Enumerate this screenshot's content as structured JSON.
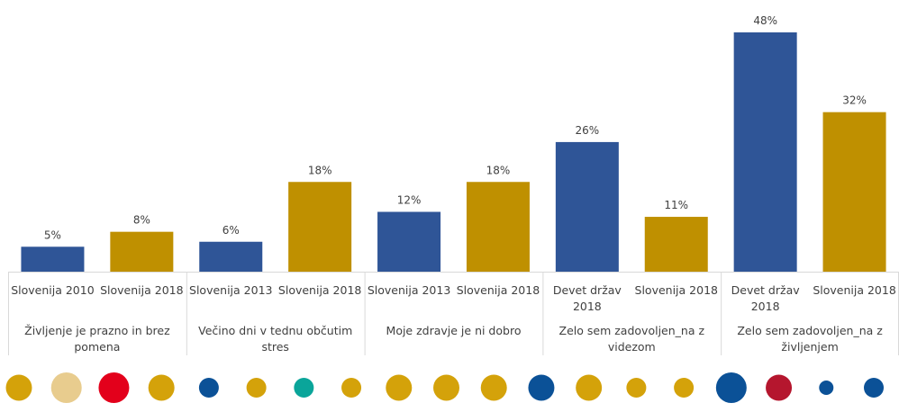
{
  "chart_data": {
    "type": "bar",
    "title": "",
    "xlabel": "",
    "ylabel": "",
    "ylim": [
      0,
      50
    ],
    "grid": false,
    "legend": "none",
    "value_format": "percent",
    "groups": [
      {
        "label": "Življenje je prazno in brez pomena",
        "bars": [
          {
            "category": "Slovenija 2010",
            "value": 5,
            "label": "5%",
            "series": "comparison"
          },
          {
            "category": "Slovenija 2018",
            "value": 8,
            "label": "8%",
            "series": "slovenia2018"
          }
        ]
      },
      {
        "label": "Večino dni v tednu občutim stres",
        "bars": [
          {
            "category": "Slovenija 2013",
            "value": 6,
            "label": "6%",
            "series": "comparison"
          },
          {
            "category": "Slovenija 2018",
            "value": 18,
            "label": "18%",
            "series": "slovenia2018"
          }
        ]
      },
      {
        "label": "Moje zdravje je ni dobro",
        "bars": [
          {
            "category": "Slovenija 2013",
            "value": 12,
            "label": "12%",
            "series": "comparison"
          },
          {
            "category": "Slovenija 2018",
            "value": 18,
            "label": "18%",
            "series": "slovenia2018"
          }
        ]
      },
      {
        "label": "Zelo sem zadovoljen_na z videzom",
        "bars": [
          {
            "category": "Devet držav 2018",
            "value": 26,
            "label": "26%",
            "series": "comparison"
          },
          {
            "category": "Slovenija 2018",
            "value": 11,
            "label": "11%",
            "series": "slovenia2018"
          }
        ]
      },
      {
        "label": "Zelo sem zadovoljen_na z življenjem",
        "bars": [
          {
            "category": "Devet držav 2018",
            "value": 48,
            "label": "48%",
            "series": "comparison"
          },
          {
            "category": "Slovenija 2018",
            "value": 32,
            "label": "32%",
            "series": "slovenia2018"
          }
        ]
      }
    ],
    "series_colors": {
      "comparison": "#2f5597",
      "slovenia2018": "#bf9000"
    }
  },
  "decor": {
    "dots": [
      {
        "color": "#d4a20a",
        "size": "m"
      },
      {
        "color": "#e8cc8e",
        "size": "l"
      },
      {
        "color": "#e3001b",
        "size": "l"
      },
      {
        "color": "#d4a20a",
        "size": "m"
      },
      {
        "color": "#0b5197",
        "size": "s"
      },
      {
        "color": "#d4a20a",
        "size": "s"
      },
      {
        "color": "#0aa59a",
        "size": "s"
      },
      {
        "color": "#d4a20a",
        "size": "s"
      },
      {
        "color": "#d4a20a",
        "size": "m"
      },
      {
        "color": "#d4a20a",
        "size": "m"
      },
      {
        "color": "#d4a20a",
        "size": "m"
      },
      {
        "color": "#0b5197",
        "size": "m"
      },
      {
        "color": "#d4a20a",
        "size": "m"
      },
      {
        "color": "#d4a20a",
        "size": "s"
      },
      {
        "color": "#d4a20a",
        "size": "s"
      },
      {
        "color": "#0b5197",
        "size": "l"
      },
      {
        "color": "#b5162e",
        "size": "m"
      },
      {
        "color": "#0b5197",
        "size": "xs"
      },
      {
        "color": "#0b5197",
        "size": "s"
      }
    ]
  }
}
